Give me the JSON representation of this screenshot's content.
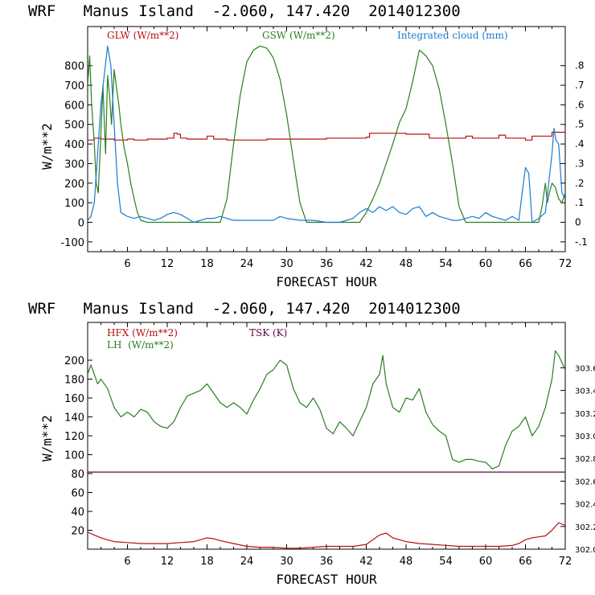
{
  "colors": {
    "red": "#b80f0f",
    "green": "#2a7e1f",
    "blue": "#1a7ad0",
    "purple": "#5a0a3a",
    "axis": "#000000"
  },
  "chart_data": [
    {
      "type": "line",
      "title": "WRF   Manus Island  -2.060, 147.420  2014012300",
      "xlabel": "FORECAST HOUR",
      "ylabel": "W/m**2",
      "xlim": [
        0,
        72
      ],
      "ylim": [
        -150,
        1000
      ],
      "xticks": [
        6,
        12,
        18,
        24,
        30,
        36,
        42,
        48,
        54,
        60,
        66,
        72
      ],
      "yticks": [
        -100,
        0,
        100,
        200,
        300,
        400,
        500,
        600,
        700,
        800
      ],
      "y2lim": [
        -0.15,
        1.0
      ],
      "y2ticks": [
        -0.1,
        0,
        0.1,
        0.2,
        0.3,
        0.4,
        0.5,
        0.6,
        0.7,
        0.8
      ],
      "y2ticklabels": [
        "-.1",
        "0",
        ".1",
        ".2",
        ".3",
        ".4",
        ".5",
        ".6",
        ".7",
        ".8"
      ],
      "legend": [
        "GLW (W/m**2)",
        "GSW (W/m**2)",
        "Integrated cloud (mm)"
      ],
      "series": [
        {
          "name": "GLW (W/m**2)",
          "color": "#b80f0f",
          "axis": "left",
          "style": "steps",
          "x": [
            0,
            1,
            2,
            4,
            5,
            6,
            7,
            9,
            10,
            12,
            13,
            13.5,
            14,
            15,
            17,
            18,
            19,
            21,
            24,
            27,
            30,
            33,
            36,
            39,
            42,
            42.5,
            45,
            48,
            51,
            51.5,
            54,
            57,
            58,
            60,
            62,
            63,
            66,
            67,
            69,
            70,
            72
          ],
          "y": [
            420,
            430,
            425,
            420,
            420,
            425,
            420,
            425,
            425,
            430,
            455,
            450,
            430,
            425,
            425,
            440,
            425,
            420,
            420,
            425,
            425,
            425,
            430,
            430,
            435,
            455,
            455,
            450,
            450,
            430,
            430,
            440,
            430,
            430,
            445,
            430,
            420,
            440,
            440,
            460,
            440
          ]
        },
        {
          "name": "GSW (W/m**2)",
          "color": "#2a7e1f",
          "axis": "left",
          "x": [
            0,
            0.3,
            0.6,
            1,
            1.3,
            1.6,
            2,
            2.3,
            2.7,
            3,
            3.3,
            3.6,
            4,
            4.3,
            4.7,
            5,
            5.5,
            6,
            6.5,
            7,
            7.5,
            8,
            9,
            12,
            15,
            18,
            20,
            21,
            22,
            23,
            24,
            25,
            26,
            27,
            28,
            29,
            30,
            31,
            32,
            33,
            36,
            39,
            41,
            42,
            43,
            44,
            45,
            46,
            47,
            48,
            49,
            50,
            51,
            52,
            53,
            54,
            55,
            56,
            57,
            60,
            63,
            66,
            67,
            68,
            68.5,
            69,
            69.3,
            69.6,
            70,
            70.5,
            71,
            71.5,
            72
          ],
          "y": [
            700,
            850,
            600,
            400,
            200,
            150,
            450,
            700,
            350,
            750,
            650,
            500,
            780,
            700,
            600,
            500,
            380,
            300,
            200,
            120,
            50,
            10,
            0,
            0,
            0,
            0,
            0,
            120,
            400,
            650,
            820,
            880,
            900,
            890,
            840,
            730,
            550,
            320,
            100,
            0,
            0,
            0,
            0,
            50,
            120,
            200,
            300,
            400,
            510,
            580,
            720,
            880,
            850,
            800,
            680,
            500,
            300,
            80,
            0,
            0,
            0,
            0,
            0,
            0,
            80,
            200,
            100,
            150,
            200,
            180,
            120,
            100,
            150
          ]
        },
        {
          "name": "Integrated cloud (mm)",
          "color": "#1a7ad0",
          "axis": "right",
          "x": [
            0,
            0.5,
            1,
            1.5,
            2,
            2.5,
            3,
            3.5,
            4,
            4.5,
            5,
            5.5,
            6,
            7,
            8,
            9,
            10,
            11,
            12,
            13,
            14,
            15,
            16,
            17,
            18,
            19,
            20,
            21,
            22,
            24,
            26,
            28,
            29,
            30,
            32,
            34,
            36,
            38,
            40,
            41,
            42,
            43,
            44,
            45,
            46,
            47,
            48,
            49,
            50,
            51,
            52,
            53,
            54,
            55,
            56,
            57,
            58,
            59,
            60,
            61,
            62,
            63,
            64,
            65,
            65.5,
            66,
            66.5,
            67,
            68,
            69,
            69.5,
            70,
            70.3,
            70.6,
            71,
            71.5,
            72
          ],
          "y": [
            0.01,
            0.03,
            0.1,
            0.35,
            0.6,
            0.75,
            0.9,
            0.8,
            0.5,
            0.2,
            0.05,
            0.04,
            0.03,
            0.02,
            0.03,
            0.02,
            0.01,
            0.02,
            0.04,
            0.05,
            0.04,
            0.02,
            0.0,
            0.01,
            0.02,
            0.02,
            0.03,
            0.02,
            0.01,
            0.01,
            0.01,
            0.01,
            0.03,
            0.02,
            0.01,
            0.01,
            0.0,
            0.0,
            0.02,
            0.05,
            0.07,
            0.05,
            0.08,
            0.06,
            0.08,
            0.05,
            0.04,
            0.07,
            0.08,
            0.03,
            0.05,
            0.03,
            0.02,
            0.01,
            0.01,
            0.02,
            0.03,
            0.02,
            0.05,
            0.03,
            0.02,
            0.01,
            0.03,
            0.01,
            0.15,
            0.28,
            0.25,
            0.0,
            0.02,
            0.05,
            0.2,
            0.35,
            0.48,
            0.42,
            0.4,
            0.15,
            0.12
          ]
        }
      ]
    },
    {
      "type": "line",
      "title": "WRF   Manus Island  -2.060, 147.420  2014012300",
      "xlabel": "FORECAST HOUR",
      "ylabel": "W/m**2",
      "xlim": [
        0,
        72
      ],
      "ylim": [
        0,
        240
      ],
      "xticks": [
        6,
        12,
        18,
        24,
        30,
        36,
        42,
        48,
        54,
        60,
        66,
        72
      ],
      "yticks": [
        20,
        40,
        60,
        80,
        100,
        120,
        140,
        160,
        180,
        200
      ],
      "y2lim": [
        302.0,
        304.0
      ],
      "y2ticks": [
        302.0,
        302.2,
        302.4,
        302.6,
        302.8,
        303.0,
        303.2,
        303.4,
        303.6
      ],
      "y2ticklabels": [
        "302.0",
        "302.2",
        "302.4",
        "302.6",
        "302.8",
        "303.0",
        "303.2",
        "303.4",
        "303.6"
      ],
      "legend": [
        "HFX (W/m**2)",
        "LH  (W/m**2)",
        "TSK (K)"
      ],
      "series": [
        {
          "name": "HFX (W/m**2)",
          "color": "#b80f0f",
          "axis": "left",
          "x": [
            0,
            1,
            2,
            3,
            4,
            6,
            8,
            10,
            12,
            14,
            16,
            17,
            18,
            19,
            20,
            22,
            24,
            26,
            28,
            30,
            32,
            34,
            36,
            38,
            40,
            42,
            43,
            44,
            45,
            46,
            48,
            50,
            52,
            54,
            56,
            58,
            60,
            62,
            64,
            65,
            66,
            67,
            68,
            69,
            70,
            71,
            72
          ],
          "y": [
            18,
            15,
            12,
            10,
            8,
            7,
            6,
            6,
            6,
            7,
            8,
            10,
            12,
            11,
            9,
            6,
            3,
            2,
            2,
            1,
            1,
            2,
            3,
            3,
            3,
            5,
            10,
            15,
            17,
            12,
            8,
            6,
            5,
            4,
            3,
            3,
            3,
            3,
            4,
            6,
            10,
            12,
            13,
            14,
            20,
            28,
            25
          ]
        },
        {
          "name": "LH  (W/m**2)",
          "color": "#2a7e1f",
          "axis": "left",
          "x": [
            0,
            0.5,
            1,
            1.5,
            2,
            3,
            4,
            5,
            6,
            7,
            8,
            9,
            10,
            11,
            12,
            13,
            14,
            15,
            16,
            17,
            18,
            19,
            20,
            21,
            22,
            23,
            24,
            25,
            26,
            27,
            28,
            29,
            30,
            31,
            32,
            33,
            34,
            35,
            36,
            37,
            38,
            39,
            40,
            41,
            42,
            43,
            44,
            44.5,
            45,
            46,
            47,
            48,
            49,
            50,
            51,
            52,
            53,
            54,
            55,
            56,
            57,
            58,
            59,
            60,
            61,
            62,
            63,
            64,
            65,
            66,
            67,
            68,
            69,
            70,
            70.5,
            71,
            72
          ],
          "y": [
            185,
            195,
            185,
            175,
            180,
            170,
            150,
            140,
            145,
            140,
            148,
            145,
            135,
            130,
            128,
            135,
            150,
            162,
            165,
            168,
            175,
            165,
            155,
            150,
            155,
            150,
            143,
            158,
            170,
            185,
            190,
            200,
            195,
            170,
            155,
            150,
            160,
            148,
            128,
            122,
            135,
            128,
            120,
            135,
            150,
            175,
            185,
            205,
            175,
            150,
            145,
            160,
            158,
            170,
            145,
            132,
            125,
            120,
            95,
            92,
            95,
            95,
            93,
            92,
            85,
            88,
            110,
            125,
            130,
            140,
            120,
            130,
            150,
            180,
            210,
            205,
            190
          ]
        },
        {
          "name": "TSK (K)",
          "color": "#5a0a3a",
          "axis": "right",
          "x": [
            0,
            72
          ],
          "y": [
            302.68,
            302.68
          ]
        }
      ]
    }
  ]
}
